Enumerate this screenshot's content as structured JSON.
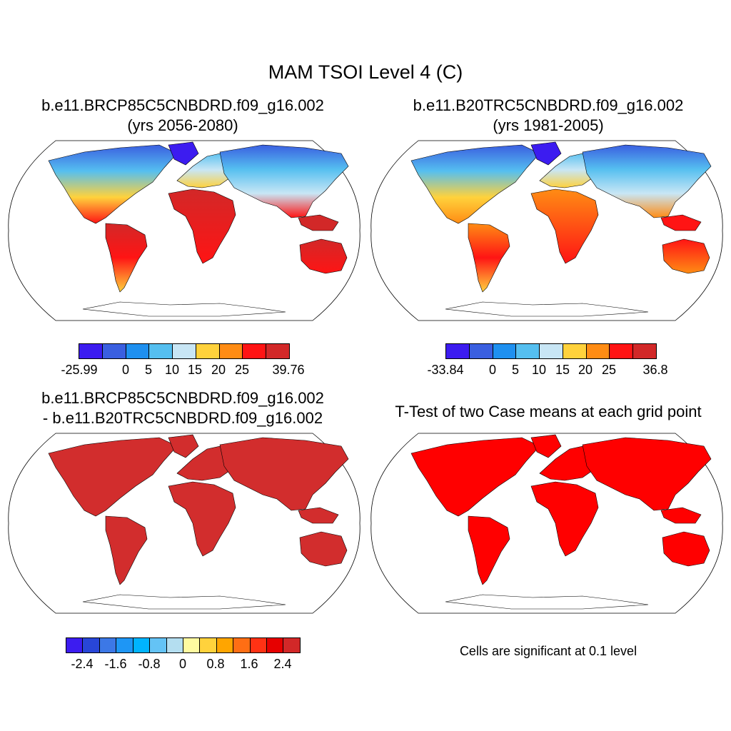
{
  "figure": {
    "title": "MAM TSOI Level 4 (C)",
    "panels": [
      {
        "title_line1": "b.e11.BRCP85C5CNBDRD.f09_g16.002",
        "title_line2": "(yrs 2056-2080)"
      },
      {
        "title_line1": "b.e11.B20TRC5CNBDRD.f09_g16.002",
        "title_line2": "(yrs 1981-2005)"
      },
      {
        "title_line1": "b.e11.BRCP85C5CNBDRD.f09_g16.002",
        "title_line2": "- b.e11.B20TRC5CNBDRD.f09_g16.002"
      },
      {
        "title_line1": "T-Test of two Case means at each grid point"
      }
    ],
    "significance_note": "Cells are significant at 0.1 level"
  },
  "colorbars": {
    "cb1": {
      "colors": [
        "#3c1cf0",
        "#3a5fe0",
        "#1e90f0",
        "#55bff0",
        "#c8e6f5",
        "#ffd23c",
        "#ff8c14",
        "#ff1414",
        "#d22828"
      ],
      "labels": [
        "-25.99",
        "0",
        "5",
        "10",
        "15",
        "20",
        "25",
        "39.76"
      ]
    },
    "cb2": {
      "colors": [
        "#3c1cf0",
        "#3a5fe0",
        "#1e90f0",
        "#55bff0",
        "#c8e6f5",
        "#ffd23c",
        "#ff8c14",
        "#ff1414",
        "#d22828"
      ],
      "labels": [
        "-33.84",
        "0",
        "5",
        "10",
        "15",
        "20",
        "25",
        "36.8"
      ]
    },
    "cb3": {
      "colors": [
        "#3c1cf0",
        "#2846d8",
        "#3c78e6",
        "#1e96f5",
        "#00b4ff",
        "#64c3f5",
        "#b4def0",
        "#fffaa0",
        "#ffd23c",
        "#ffa500",
        "#ff6e14",
        "#ff3214",
        "#e60000",
        "#d22828"
      ],
      "labels": [
        "-2.4",
        "-1.6",
        "-0.8",
        "0",
        "0.8",
        "1.6",
        "2.4"
      ]
    }
  },
  "legend_colors": {
    "ttest_fill": "#ff0000",
    "diff_fill": "#d22d2d",
    "ocean": "#ffffff"
  }
}
